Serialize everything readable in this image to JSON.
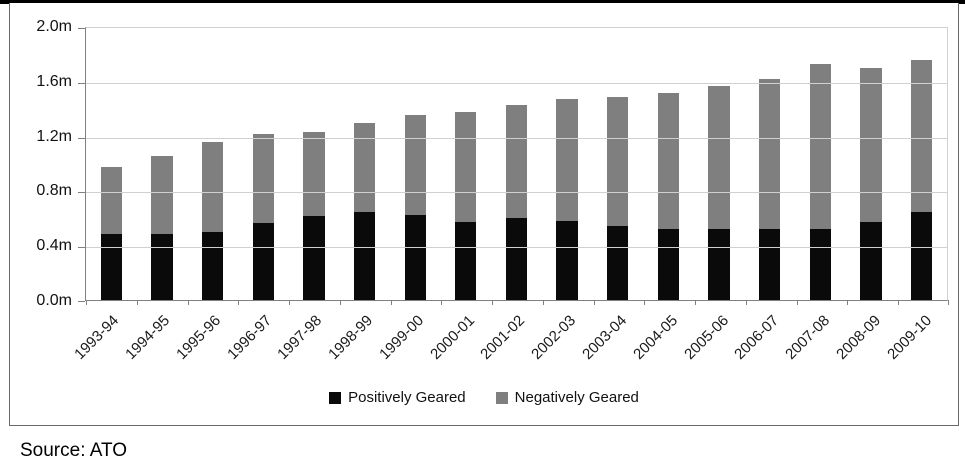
{
  "source_note": "Source: ATO",
  "colors": {
    "positive_bar": "#0a0a0a",
    "negative_bar": "#7f7f7f",
    "gridline": "#d0d0d0",
    "axis": "#808080",
    "frame_border": "#6b6b6b"
  },
  "chart_data": {
    "type": "bar",
    "stacked": true,
    "title": "",
    "xlabel": "",
    "ylabel": "",
    "grid": true,
    "legend_position": "bottom",
    "ylim": [
      0,
      2.0
    ],
    "y_ticks": [
      "0.0m",
      "0.4m",
      "0.8m",
      "1.2m",
      "1.6m",
      "2.0m"
    ],
    "y_tick_values": [
      0,
      0.4,
      0.8,
      1.2,
      1.6,
      2.0
    ],
    "categories": [
      "1993-94",
      "1994-95",
      "1995-96",
      "1996-97",
      "1997-98",
      "1998-99",
      "1999-00",
      "2000-01",
      "2001-02",
      "2002-03",
      "2003-04",
      "2004-05",
      "2005-06",
      "2006-07",
      "2007-08",
      "2008-09",
      "2009-10"
    ],
    "series": [
      {
        "name": "Positively Geared",
        "color": "#0a0a0a",
        "values": [
          0.48,
          0.48,
          0.5,
          0.56,
          0.61,
          0.64,
          0.62,
          0.57,
          0.6,
          0.58,
          0.54,
          0.52,
          0.52,
          0.52,
          0.52,
          0.57,
          0.64
        ]
      },
      {
        "name": "Negatively Geared",
        "color": "#7f7f7f",
        "values": [
          0.49,
          0.57,
          0.65,
          0.65,
          0.62,
          0.65,
          0.73,
          0.8,
          0.82,
          0.89,
          0.94,
          0.99,
          1.04,
          1.09,
          1.2,
          1.12,
          1.11
        ]
      }
    ]
  }
}
